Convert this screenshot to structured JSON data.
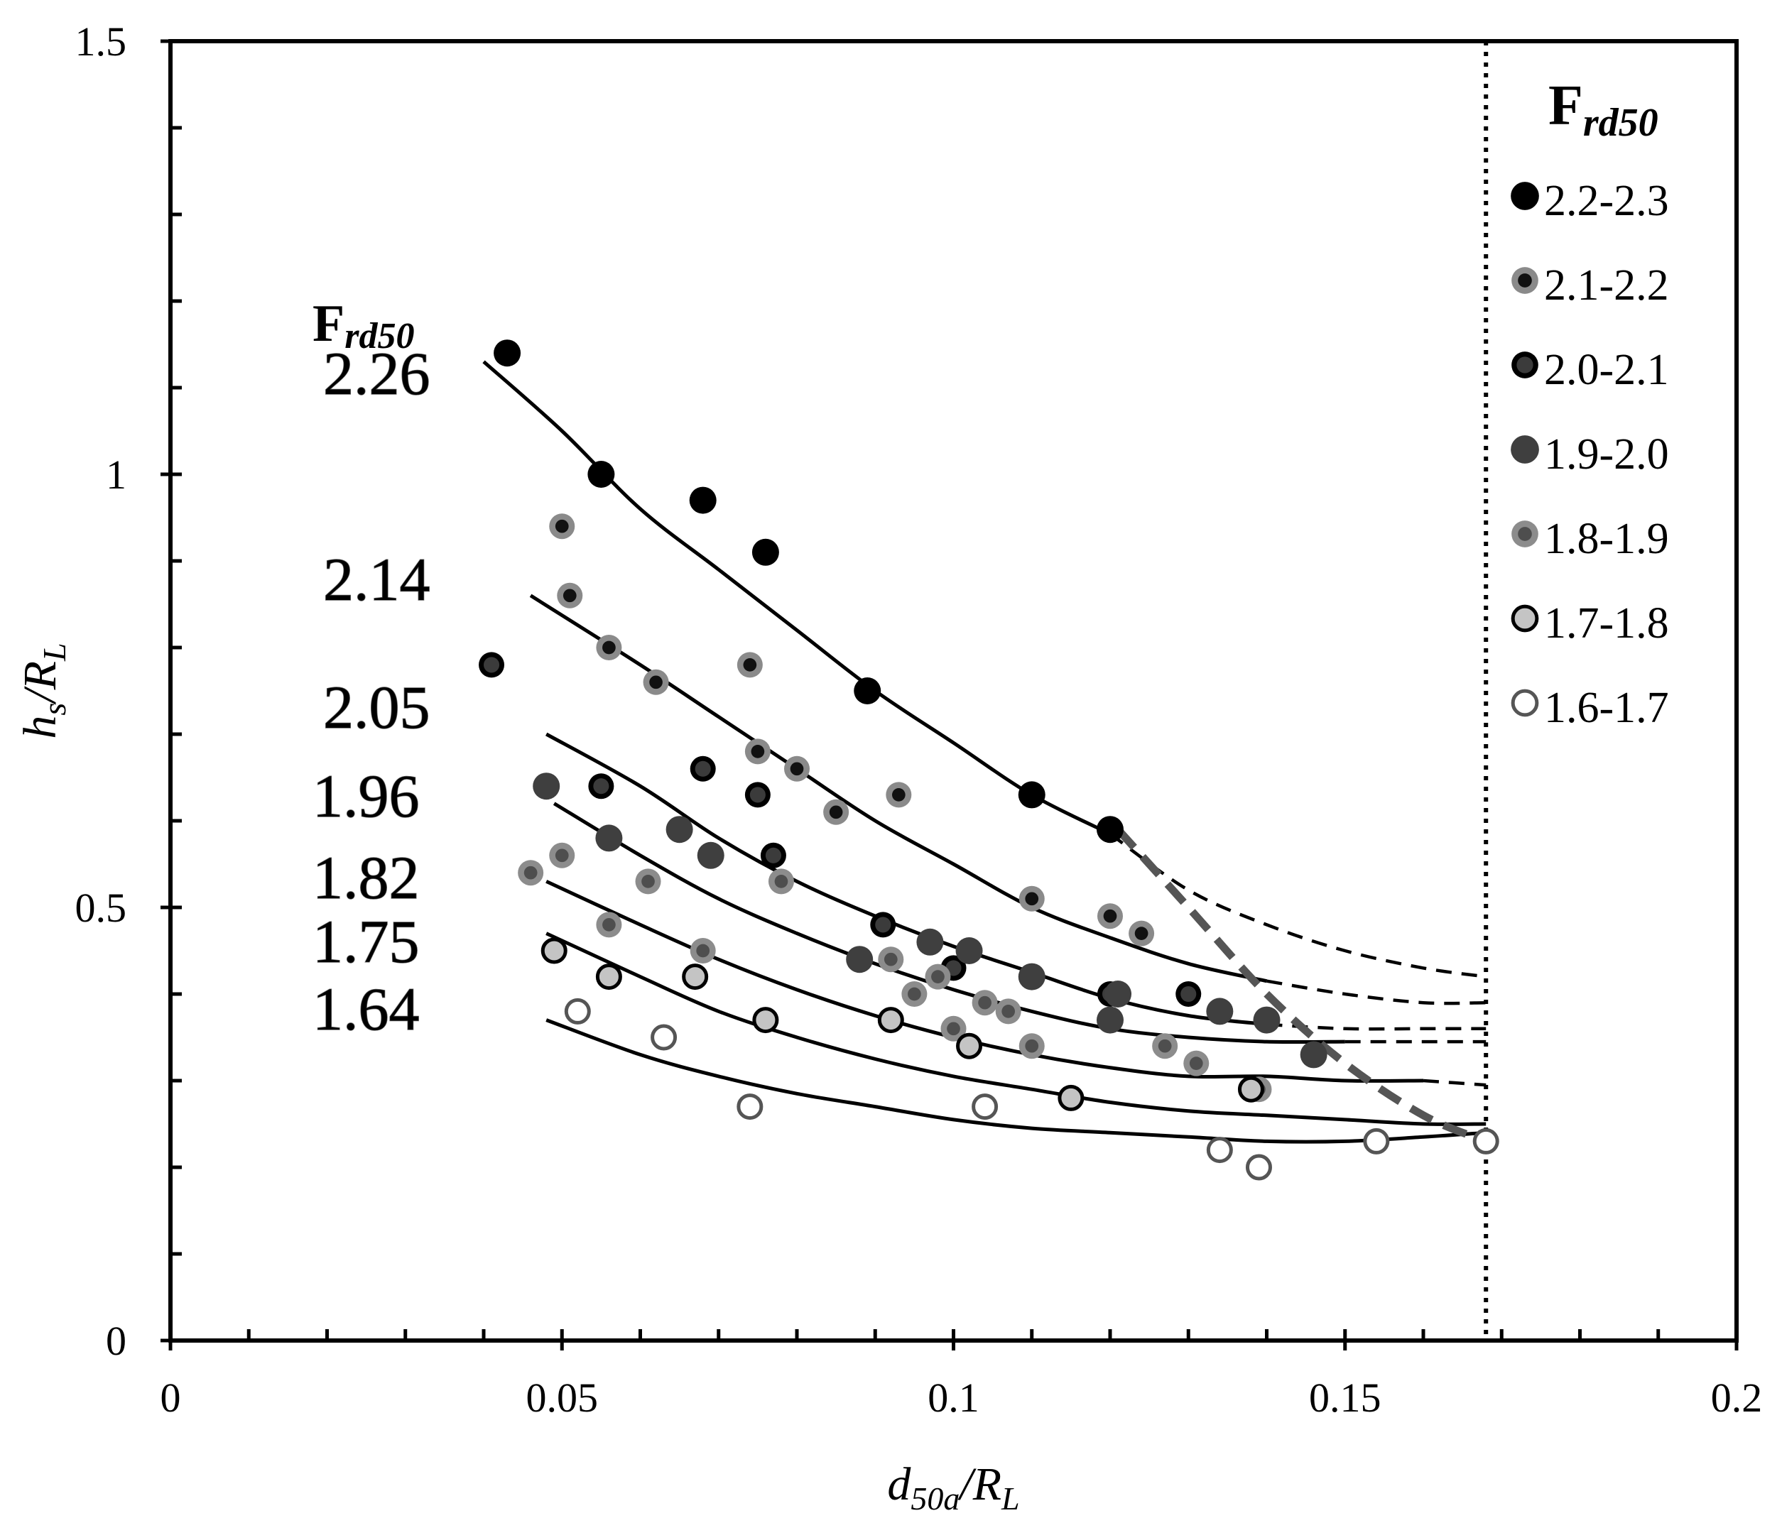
{
  "chart_data": {
    "type": "scatter",
    "xlabel": {
      "main": "d",
      "sub": "50a",
      "tail": "/R",
      "tailsub": "L"
    },
    "ylabel": {
      "main": "h",
      "sub": "s",
      "tail": "/R",
      "tailsub": "L"
    },
    "xlim": [
      0,
      0.2
    ],
    "ylim": [
      0,
      1.5
    ],
    "x_ticks": [
      0,
      0.05,
      0.1,
      0.15,
      0.2
    ],
    "x_tick_labels": [
      "0",
      "0.05",
      "0.1",
      "0.15",
      "0.2"
    ],
    "y_ticks": [
      0,
      0.5,
      1,
      1.5
    ],
    "y_tick_labels": [
      "0",
      "0.5",
      "1",
      "1.5"
    ],
    "x_minor_step": 0.01,
    "y_minor_step": 0.1,
    "vertical_reference_x": 0.168,
    "legend": {
      "title_main": "F",
      "title_sub": "rd50",
      "placement": "top-right",
      "entries": [
        "2.2-2.3",
        "2.1-2.2",
        "2.0-2.1",
        "1.9-2.0",
        "1.8-1.9",
        "1.7-1.8",
        "1.6-1.7"
      ]
    },
    "curve_label_title": {
      "main": "F",
      "sub": "rd50"
    },
    "series": [
      {
        "name": "2.2-2.3",
        "marker": "black-dot",
        "points": [
          [
            0.043,
            1.14
          ],
          [
            0.055,
            1.0
          ],
          [
            0.068,
            0.97
          ],
          [
            0.076,
            0.91
          ],
          [
            0.089,
            0.75
          ],
          [
            0.11,
            0.63
          ],
          [
            0.12,
            0.59
          ]
        ]
      },
      {
        "name": "2.1-2.2",
        "marker": "grey-ring-black-core",
        "points": [
          [
            0.05,
            0.94
          ],
          [
            0.051,
            0.86
          ],
          [
            0.056,
            0.8
          ],
          [
            0.062,
            0.76
          ],
          [
            0.074,
            0.78
          ],
          [
            0.075,
            0.68
          ],
          [
            0.08,
            0.66
          ],
          [
            0.085,
            0.61
          ],
          [
            0.093,
            0.63
          ],
          [
            0.11,
            0.51
          ],
          [
            0.12,
            0.49
          ],
          [
            0.124,
            0.47
          ]
        ]
      },
      {
        "name": "2.0-2.1",
        "marker": "black-ring-dark-core",
        "points": [
          [
            0.041,
            0.78
          ],
          [
            0.055,
            0.64
          ],
          [
            0.068,
            0.66
          ],
          [
            0.075,
            0.63
          ],
          [
            0.077,
            0.56
          ],
          [
            0.091,
            0.48
          ],
          [
            0.1,
            0.43
          ],
          [
            0.12,
            0.4
          ],
          [
            0.13,
            0.4
          ]
        ]
      },
      {
        "name": "1.9-2.0",
        "marker": "dark-grey-dot",
        "points": [
          [
            0.048,
            0.64
          ],
          [
            0.056,
            0.58
          ],
          [
            0.065,
            0.59
          ],
          [
            0.069,
            0.56
          ],
          [
            0.088,
            0.44
          ],
          [
            0.097,
            0.46
          ],
          [
            0.102,
            0.45
          ],
          [
            0.11,
            0.42
          ],
          [
            0.12,
            0.37
          ],
          [
            0.121,
            0.4
          ],
          [
            0.134,
            0.38
          ],
          [
            0.14,
            0.37
          ],
          [
            0.146,
            0.33
          ]
        ]
      },
      {
        "name": "1.8-1.9",
        "marker": "grey-dot-dark-core",
        "points": [
          [
            0.046,
            0.54
          ],
          [
            0.05,
            0.56
          ],
          [
            0.056,
            0.48
          ],
          [
            0.061,
            0.53
          ],
          [
            0.068,
            0.45
          ],
          [
            0.078,
            0.53
          ],
          [
            0.092,
            0.44
          ],
          [
            0.095,
            0.4
          ],
          [
            0.098,
            0.42
          ],
          [
            0.1,
            0.36
          ],
          [
            0.104,
            0.39
          ],
          [
            0.107,
            0.38
          ],
          [
            0.11,
            0.34
          ],
          [
            0.127,
            0.34
          ],
          [
            0.131,
            0.32
          ],
          [
            0.139,
            0.29
          ]
        ]
      },
      {
        "name": "1.7-1.8",
        "marker": "light-grey-black-ring",
        "points": [
          [
            0.049,
            0.45
          ],
          [
            0.056,
            0.42
          ],
          [
            0.067,
            0.42
          ],
          [
            0.076,
            0.37
          ],
          [
            0.092,
            0.37
          ],
          [
            0.102,
            0.34
          ],
          [
            0.115,
            0.28
          ],
          [
            0.138,
            0.29
          ]
        ]
      },
      {
        "name": "1.6-1.7",
        "marker": "open-grey-ring",
        "points": [
          [
            0.052,
            0.38
          ],
          [
            0.063,
            0.35
          ],
          [
            0.074,
            0.27
          ],
          [
            0.104,
            0.27
          ],
          [
            0.134,
            0.22
          ],
          [
            0.139,
            0.2
          ],
          [
            0.154,
            0.23
          ],
          [
            0.168,
            0.23
          ]
        ]
      }
    ],
    "fit_curves": [
      {
        "label": "2.26",
        "points": [
          [
            0.04,
            1.13
          ],
          [
            0.05,
            1.05
          ],
          [
            0.06,
            0.96
          ],
          [
            0.07,
            0.89
          ],
          [
            0.08,
            0.82
          ],
          [
            0.09,
            0.75
          ],
          [
            0.1,
            0.69
          ],
          [
            0.11,
            0.63
          ],
          [
            0.12,
            0.585
          ]
        ],
        "extension": [
          [
            0.12,
            0.585
          ],
          [
            0.13,
            0.52
          ],
          [
            0.14,
            0.48
          ],
          [
            0.15,
            0.45
          ],
          [
            0.16,
            0.43
          ],
          [
            0.168,
            0.42
          ]
        ]
      },
      {
        "label": "2.14",
        "points": [
          [
            0.046,
            0.86
          ],
          [
            0.06,
            0.78
          ],
          [
            0.07,
            0.72
          ],
          [
            0.08,
            0.66
          ],
          [
            0.09,
            0.6
          ],
          [
            0.1,
            0.55
          ],
          [
            0.11,
            0.5
          ],
          [
            0.12,
            0.465
          ],
          [
            0.13,
            0.435
          ],
          [
            0.14,
            0.415
          ]
        ],
        "extension": [
          [
            0.14,
            0.415
          ],
          [
            0.15,
            0.4
          ],
          [
            0.16,
            0.39
          ],
          [
            0.168,
            0.39
          ]
        ]
      },
      {
        "label": "2.05",
        "points": [
          [
            0.048,
            0.7
          ],
          [
            0.06,
            0.64
          ],
          [
            0.07,
            0.58
          ],
          [
            0.08,
            0.53
          ],
          [
            0.09,
            0.49
          ],
          [
            0.1,
            0.455
          ],
          [
            0.11,
            0.425
          ],
          [
            0.12,
            0.395
          ],
          [
            0.13,
            0.375
          ],
          [
            0.14,
            0.365
          ]
        ],
        "extension": [
          [
            0.14,
            0.365
          ],
          [
            0.15,
            0.36
          ],
          [
            0.16,
            0.36
          ],
          [
            0.168,
            0.36
          ]
        ]
      },
      {
        "label": "1.96",
        "points": [
          [
            0.049,
            0.62
          ],
          [
            0.06,
            0.56
          ],
          [
            0.07,
            0.51
          ],
          [
            0.08,
            0.47
          ],
          [
            0.09,
            0.435
          ],
          [
            0.1,
            0.405
          ],
          [
            0.11,
            0.38
          ],
          [
            0.12,
            0.36
          ],
          [
            0.13,
            0.35
          ],
          [
            0.14,
            0.345
          ],
          [
            0.15,
            0.345
          ]
        ],
        "extension": [
          [
            0.15,
            0.345
          ],
          [
            0.16,
            0.345
          ],
          [
            0.168,
            0.345
          ]
        ]
      },
      {
        "label": "1.82",
        "points": [
          [
            0.048,
            0.53
          ],
          [
            0.06,
            0.48
          ],
          [
            0.07,
            0.44
          ],
          [
            0.08,
            0.405
          ],
          [
            0.09,
            0.375
          ],
          [
            0.1,
            0.35
          ],
          [
            0.11,
            0.33
          ],
          [
            0.12,
            0.315
          ],
          [
            0.13,
            0.305
          ],
          [
            0.14,
            0.305
          ],
          [
            0.15,
            0.3
          ],
          [
            0.16,
            0.3
          ]
        ],
        "extension": [
          [
            0.16,
            0.3
          ],
          [
            0.168,
            0.295
          ]
        ]
      },
      {
        "label": "1.75",
        "points": [
          [
            0.048,
            0.47
          ],
          [
            0.06,
            0.42
          ],
          [
            0.07,
            0.38
          ],
          [
            0.08,
            0.35
          ],
          [
            0.09,
            0.325
          ],
          [
            0.1,
            0.305
          ],
          [
            0.11,
            0.29
          ],
          [
            0.12,
            0.275
          ],
          [
            0.13,
            0.265
          ],
          [
            0.14,
            0.26
          ],
          [
            0.15,
            0.255
          ],
          [
            0.16,
            0.25
          ],
          [
            0.168,
            0.25
          ]
        ],
        "extension": []
      },
      {
        "label": "1.64",
        "points": [
          [
            0.048,
            0.37
          ],
          [
            0.06,
            0.33
          ],
          [
            0.07,
            0.305
          ],
          [
            0.08,
            0.285
          ],
          [
            0.09,
            0.27
          ],
          [
            0.1,
            0.255
          ],
          [
            0.11,
            0.245
          ],
          [
            0.12,
            0.24
          ],
          [
            0.13,
            0.235
          ],
          [
            0.14,
            0.23
          ],
          [
            0.15,
            0.23
          ],
          [
            0.16,
            0.235
          ],
          [
            0.168,
            0.24
          ]
        ],
        "extension": []
      }
    ],
    "envelope_curve": [
      [
        0.121,
        0.59
      ],
      [
        0.13,
        0.5
      ],
      [
        0.14,
        0.4
      ],
      [
        0.15,
        0.32
      ],
      [
        0.16,
        0.26
      ],
      [
        0.168,
        0.23
      ]
    ]
  }
}
